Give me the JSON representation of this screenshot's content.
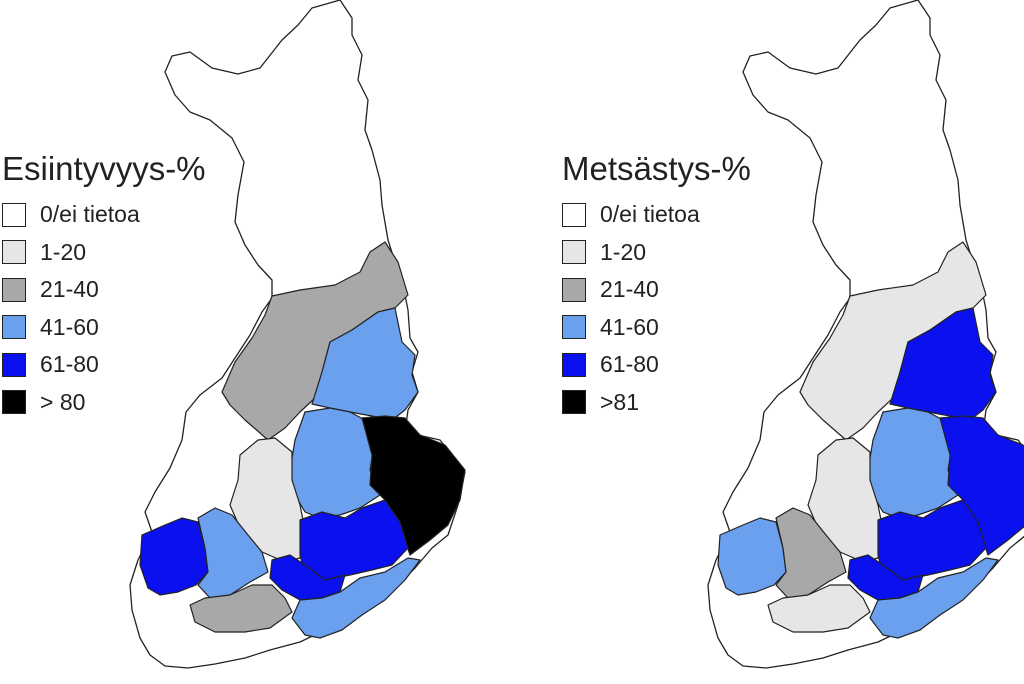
{
  "palette": {
    "none": "#ffffff",
    "c1": "#e6e6e6",
    "c2": "#a8a8a8",
    "c3": "#6aa0ee",
    "c4": "#0a10ee",
    "c5": "#000000"
  },
  "maps": [
    {
      "title": "Esiintyvyys-%",
      "legend": [
        {
          "label": "0/ei tietoa",
          "class": "none"
        },
        {
          "label": "1-20",
          "class": "c1"
        },
        {
          "label": "21-40",
          "class": "c2"
        },
        {
          "label": "41-60",
          "class": "c3"
        },
        {
          "label": "61-80",
          "class": "c4"
        },
        {
          "label": "> 80",
          "class": "c5"
        }
      ],
      "regions": {
        "lapland": "none",
        "north-ostrobothnia": "c2",
        "ostrobothnia-north": "c2",
        "kainuu": "c3",
        "central-north": "c3",
        "north-karelia": "c5",
        "west-coast": "none",
        "central-finland": "c1",
        "satakunta": "c4",
        "pirkanmaa": "c3",
        "south-savo": "c4",
        "kymenlaakso": "c4",
        "uusimaa-east": "c3",
        "hame": "c2",
        "southwest": "none"
      }
    },
    {
      "title": "Metsästys-%",
      "legend": [
        {
          "label": "0/ei tietoa",
          "class": "none"
        },
        {
          "label": "1-20",
          "class": "c1"
        },
        {
          "label": "21-40",
          "class": "c2"
        },
        {
          "label": "41-60",
          "class": "c3"
        },
        {
          "label": "61-80",
          "class": "c4"
        },
        {
          "label": ">81",
          "class": "c5"
        }
      ],
      "regions": {
        "lapland": "none",
        "north-ostrobothnia": "c1",
        "ostrobothnia-north": "c1",
        "kainuu": "c4",
        "central-north": "c3",
        "north-karelia": "c4",
        "west-coast": "c3",
        "central-finland": "c1",
        "satakunta": "c3",
        "pirkanmaa": "c2",
        "south-savo": "c4",
        "kymenlaakso": "c4",
        "uusimaa-east": "c3",
        "hame": "c1",
        "southwest": "none"
      }
    }
  ]
}
